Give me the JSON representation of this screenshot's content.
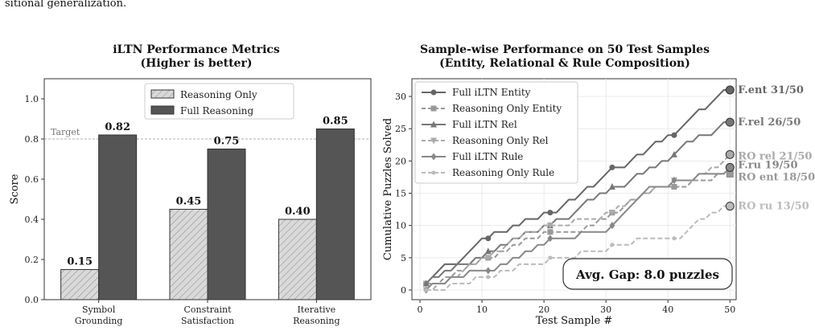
{
  "page": {
    "caption_fragment": "sitional generalization."
  },
  "chart_data": [
    {
      "type": "bar",
      "title": "iLTN Performance Metrics\n(Higher is better)",
      "xlabel": "",
      "ylabel": "Score",
      "categories": [
        "Symbol\nGrounding",
        "Constraint\nSatisfaction",
        "Iterative\nReasoning"
      ],
      "series": [
        {
          "name": "Reasoning Only",
          "values": [
            0.15,
            0.45,
            0.4
          ],
          "color": "#d9d9d9",
          "hatch": true
        },
        {
          "name": "Full Reasoning",
          "values": [
            0.82,
            0.75,
            0.85
          ],
          "color": "#555555",
          "hatch": false
        }
      ],
      "data_labels": [
        "0.15",
        "0.45",
        "0.40",
        "0.82",
        "0.75",
        "0.85"
      ],
      "ylim": [
        0,
        1.1
      ],
      "yticks": [
        "0.0",
        "0.2",
        "0.4",
        "0.6",
        "0.8",
        "1.0"
      ],
      "reference_line": {
        "value": 0.8,
        "label": "Target"
      },
      "legend": "top-center"
    },
    {
      "type": "line",
      "title": "Sample-wise Performance on 50 Test Samples\n(Entity, Relational & Rule Composition)",
      "xlabel": "Test Sample #",
      "ylabel": "Cumulative Puzzles Solved",
      "xlim": [
        1,
        50
      ],
      "ylim": [
        0,
        31
      ],
      "xticks": [
        "0",
        "10",
        "20",
        "30",
        "40",
        "50"
      ],
      "yticks": [
        "0",
        "5",
        "10",
        "15",
        "20",
        "25",
        "30"
      ],
      "grid": true,
      "legend": "top-left",
      "series": [
        {
          "name": "Full iLTN Entity",
          "style": "solid",
          "marker": "circle",
          "color": "#666666",
          "values": [
            1,
            2,
            3,
            4,
            4,
            4,
            5,
            6,
            7,
            8,
            8,
            9,
            9,
            9,
            10,
            10,
            11,
            11,
            11,
            12,
            12,
            12,
            13,
            14,
            14,
            15,
            16,
            16,
            17,
            18,
            19,
            19,
            19,
            20,
            21,
            21,
            22,
            23,
            23,
            24,
            24,
            25,
            26,
            27,
            28,
            28,
            29,
            30,
            31,
            31
          ],
          "end_label": "F.ent 31/50"
        },
        {
          "name": "Reasoning Only Entity",
          "style": "dashed",
          "marker": "square",
          "color": "#999999",
          "values": [
            1,
            1,
            1,
            2,
            2,
            3,
            3,
            4,
            4,
            5,
            5,
            5,
            6,
            6,
            7,
            7,
            8,
            8,
            8,
            9,
            9,
            9,
            9,
            9,
            9,
            9,
            10,
            10,
            11,
            11,
            12,
            12,
            13,
            14,
            14,
            15,
            15,
            16,
            16,
            16,
            16,
            16,
            16,
            17,
            17,
            17,
            17,
            18,
            18,
            18
          ],
          "end_label": "RO ent 18/50"
        },
        {
          "name": "Full iLTN Rel",
          "style": "solid",
          "marker": "triangle",
          "color": "#777777",
          "values": [
            1,
            2,
            2,
            3,
            3,
            4,
            4,
            4,
            5,
            5,
            6,
            6,
            7,
            7,
            8,
            8,
            9,
            9,
            9,
            10,
            10,
            11,
            11,
            11,
            12,
            13,
            14,
            14,
            15,
            15,
            16,
            16,
            16,
            17,
            18,
            18,
            19,
            19,
            20,
            20,
            21,
            22,
            23,
            23,
            24,
            24,
            24,
            25,
            26,
            26
          ],
          "end_label": "F.rel 26/50"
        },
        {
          "name": "Reasoning Only Rel",
          "style": "dashed",
          "marker": "triangle-down",
          "color": "#aaaaaa",
          "values": [
            0,
            0,
            1,
            1,
            2,
            2,
            3,
            4,
            4,
            5,
            5,
            6,
            6,
            7,
            8,
            8,
            9,
            9,
            9,
            10,
            10,
            10,
            10,
            10,
            11,
            11,
            11,
            11,
            11,
            12,
            12,
            13,
            13,
            14,
            14,
            15,
            15,
            16,
            16,
            16,
            17,
            17,
            17,
            17,
            18,
            18,
            19,
            19,
            20,
            21
          ],
          "end_label": "RO rel 21/50"
        },
        {
          "name": "Full iLTN Rule",
          "style": "solid",
          "marker": "diamond",
          "color": "#888888",
          "values": [
            0,
            1,
            1,
            1,
            2,
            2,
            2,
            3,
            3,
            3,
            3,
            3,
            4,
            4,
            5,
            5,
            6,
            6,
            7,
            7,
            8,
            8,
            8,
            8,
            8,
            9,
            9,
            9,
            9,
            9,
            10,
            11,
            12,
            13,
            14,
            15,
            16,
            16,
            16,
            16,
            17,
            17,
            17,
            17,
            18,
            18,
            18,
            18,
            18,
            19
          ],
          "end_label": "F.ru 19/50"
        },
        {
          "name": "Reasoning Only Rule",
          "style": "dashed",
          "marker": "circle-small",
          "color": "#bbbbbb",
          "values": [
            0,
            0,
            0,
            0,
            1,
            1,
            1,
            1,
            2,
            2,
            2,
            2,
            3,
            3,
            3,
            4,
            4,
            4,
            4,
            4,
            5,
            5,
            5,
            5,
            5,
            6,
            6,
            6,
            6,
            6,
            7,
            7,
            7,
            7,
            8,
            8,
            8,
            8,
            8,
            8,
            8,
            8,
            9,
            10,
            11,
            11,
            12,
            12,
            13,
            13
          ],
          "end_label": "RO ru 13/50"
        }
      ],
      "annotation": "Avg. Gap: 8.0 puzzles"
    }
  ]
}
